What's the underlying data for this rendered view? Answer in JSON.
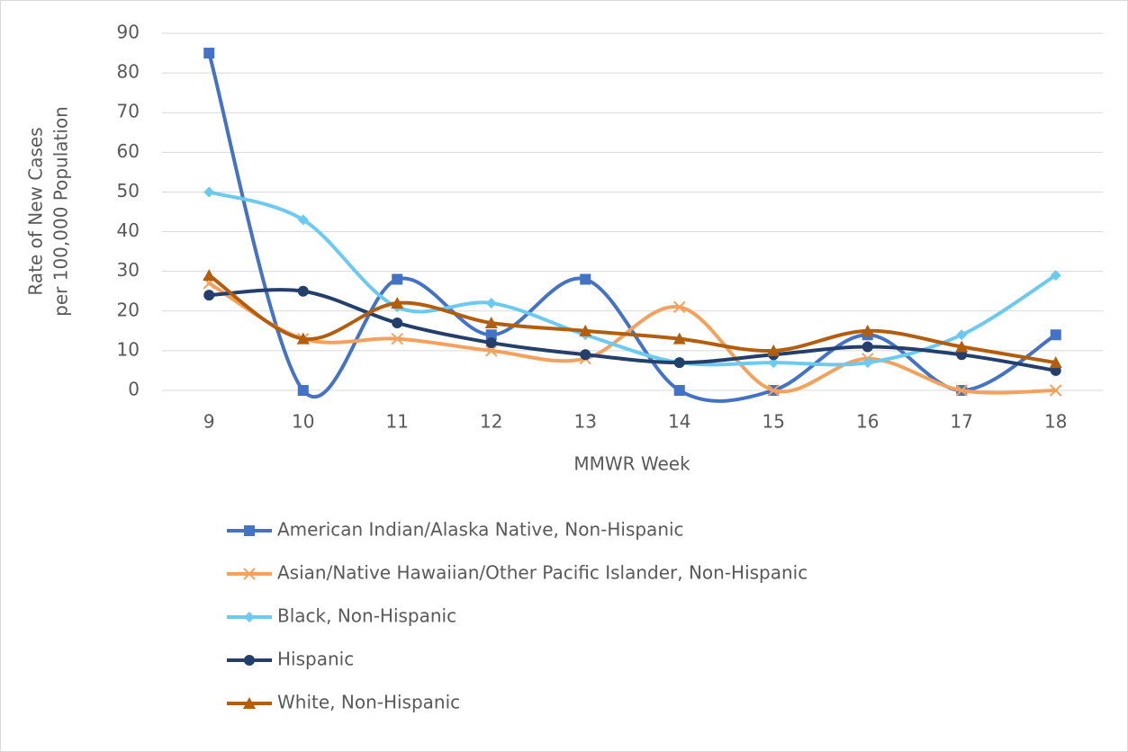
{
  "chart_data": {
    "type": "line",
    "smooth": true,
    "y_label": [
      "Rate of New Cases",
      "per 100,000 Population"
    ],
    "x_label": "MMWR Week",
    "categories": [
      "9",
      "10",
      "11",
      "12",
      "13",
      "14",
      "15",
      "16",
      "17",
      "18"
    ],
    "ylim": [
      0,
      90
    ],
    "yticks": [
      0,
      10,
      20,
      30,
      40,
      50,
      60,
      70,
      80,
      90
    ],
    "grid": true,
    "legend": "bottom",
    "series": [
      {
        "name": "American Indian/Alaska Native, Non-Hispanic",
        "color": "#4472c4",
        "marker": "square",
        "values": [
          85,
          0,
          28,
          14,
          28,
          0,
          0,
          14,
          0,
          14
        ]
      },
      {
        "name": "Asian/Native Hawaiian/Other Pacific Islander, Non-Hispanic",
        "color": "#f4a15d",
        "marker": "x",
        "values": [
          27,
          13,
          13,
          10,
          8,
          21,
          0,
          8,
          0,
          0
        ]
      },
      {
        "name": "Black, Non-Hispanic",
        "color": "#6ccaf0",
        "marker": "diamond",
        "values": [
          50,
          43,
          21,
          22,
          14,
          7,
          7,
          7,
          14,
          29
        ]
      },
      {
        "name": "Hispanic",
        "color": "#243f6b",
        "marker": "circle",
        "values": [
          24,
          25,
          17,
          12,
          9,
          7,
          9,
          11,
          9,
          5
        ]
      },
      {
        "name": "White, Non-Hispanic",
        "color": "#b35e0f",
        "marker": "triangle",
        "values": [
          29,
          13,
          22,
          17,
          15,
          13,
          10,
          15,
          11,
          7
        ]
      }
    ]
  }
}
